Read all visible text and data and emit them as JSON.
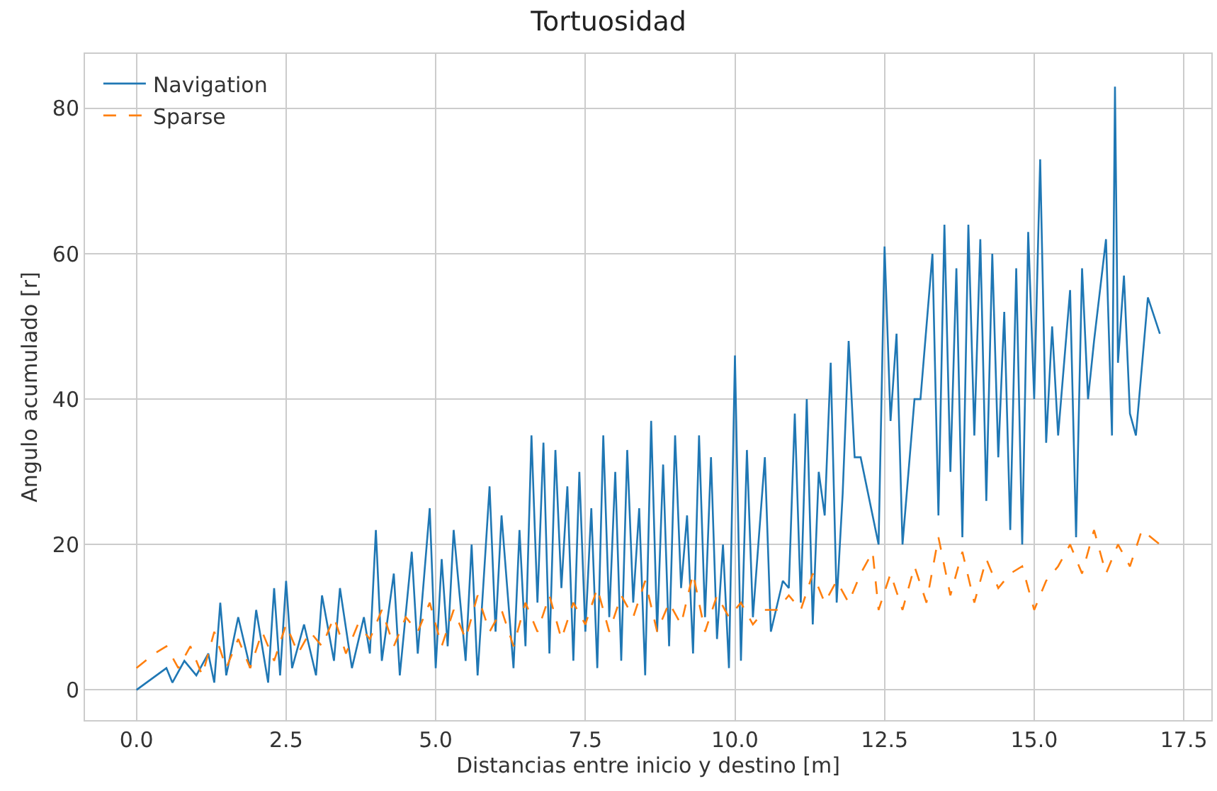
{
  "chart_data": {
    "type": "line",
    "title": "Tortuosidad",
    "xlabel": "Distancias entre inicio y destino [m]",
    "ylabel": "Angulo acumulado [r]",
    "xlim": [
      -0.86,
      17.96
    ],
    "xticks": [
      {
        "value": 0,
        "label": "0.0"
      },
      2.5,
      {
        "value": 5,
        "label": "5.0"
      },
      7.5,
      {
        "value": 10,
        "label": "10.0"
      },
      12.5,
      {
        "value": 15,
        "label": "15.0"
      },
      17.5
    ],
    "ylim": [
      -4.16,
      87.5
    ],
    "yticks": [
      0,
      20,
      40,
      60,
      80
    ],
    "grid": true,
    "legend": "top left",
    "series": [
      {
        "name": "Navigation",
        "color": "#1f77b4",
        "line_style": "solid",
        "x": [
          0.0,
          0.5,
          0.6,
          0.8,
          1.0,
          1.2,
          1.3,
          1.4,
          1.5,
          1.7,
          1.9,
          2.0,
          2.2,
          2.3,
          2.4,
          2.5,
          2.6,
          2.8,
          3.0,
          3.1,
          3.3,
          3.4,
          3.6,
          3.8,
          3.9,
          4.0,
          4.1,
          4.3,
          4.4,
          4.6,
          4.7,
          4.9,
          5.0,
          5.1,
          5.2,
          5.3,
          5.5,
          5.6,
          5.7,
          5.9,
          6.0,
          6.1,
          6.3,
          6.4,
          6.5,
          6.6,
          6.7,
          6.8,
          6.9,
          7.0,
          7.1,
          7.2,
          7.3,
          7.4,
          7.5,
          7.6,
          7.7,
          7.8,
          7.9,
          8.0,
          8.1,
          8.2,
          8.3,
          8.4,
          8.5,
          8.6,
          8.7,
          8.8,
          8.9,
          9.0,
          9.1,
          9.2,
          9.3,
          9.4,
          9.5,
          9.6,
          9.7,
          9.8,
          9.9,
          10.0,
          10.1,
          10.2,
          10.3,
          10.5,
          10.6,
          10.8,
          10.9,
          11.0,
          11.1,
          11.2,
          11.3,
          11.4,
          11.5,
          11.6,
          11.7,
          11.8,
          11.9,
          12.0,
          12.1,
          12.4,
          12.5,
          12.6,
          12.7,
          12.8,
          13.0,
          13.1,
          13.3,
          13.4,
          13.5,
          13.6,
          13.7,
          13.8,
          13.9,
          14.0,
          14.1,
          14.2,
          14.3,
          14.4,
          14.5,
          14.6,
          14.7,
          14.8,
          14.9,
          15.0,
          15.1,
          15.2,
          15.3,
          15.4,
          15.6,
          15.7,
          15.8,
          15.9,
          16.0,
          16.2,
          16.3,
          16.35,
          16.4,
          16.5,
          16.6,
          16.7,
          16.9,
          17.1
        ],
        "values": [
          0,
          3,
          1,
          4,
          2,
          5,
          1,
          12,
          2,
          10,
          3,
          11,
          1,
          14,
          2,
          15,
          3,
          9,
          2,
          13,
          4,
          14,
          3,
          10,
          5,
          22,
          4,
          16,
          2,
          19,
          5,
          25,
          3,
          18,
          6,
          22,
          4,
          20,
          2,
          28,
          8,
          24,
          3,
          22,
          6,
          35,
          12,
          34,
          5,
          33,
          14,
          28,
          4,
          30,
          8,
          25,
          3,
          35,
          10,
          30,
          4,
          33,
          12,
          25,
          2,
          37,
          8,
          31,
          6,
          35,
          14,
          24,
          5,
          35,
          10,
          32,
          7,
          20,
          3,
          46,
          4,
          33,
          10,
          32,
          8,
          15,
          14,
          38,
          12,
          40,
          9,
          30,
          24,
          45,
          12,
          27,
          48,
          32,
          32,
          20,
          61,
          37,
          49,
          20,
          40,
          40,
          60,
          24,
          64,
          30,
          58,
          21,
          64,
          35,
          62,
          26,
          60,
          32,
          52,
          22,
          58,
          20,
          63,
          40,
          73,
          34,
          50,
          35,
          55,
          21,
          58,
          40,
          48,
          62,
          35,
          83,
          45,
          57,
          38,
          35,
          54,
          49
        ]
      },
      {
        "name": "Sparse",
        "color": "#ff7f0e",
        "line_style": "dashed",
        "x": [
          0,
          0.3,
          0.5,
          0.7,
          0.9,
          1.1,
          1.3,
          1.5,
          1.7,
          1.9,
          2.1,
          2.3,
          2.5,
          2.7,
          2.9,
          3.1,
          3.3,
          3.5,
          3.7,
          3.9,
          4.1,
          4.3,
          4.5,
          4.7,
          4.9,
          5.1,
          5.3,
          5.5,
          5.7,
          5.9,
          6.1,
          6.3,
          6.5,
          6.7,
          6.9,
          7.1,
          7.3,
          7.5,
          7.7,
          7.9,
          8.1,
          8.3,
          8.5,
          8.7,
          8.9,
          9.1,
          9.3,
          9.5,
          9.7,
          9.9,
          10.1,
          10.3,
          10.5,
          10.7,
          10.9,
          11.1,
          11.3,
          11.5,
          11.7,
          11.9,
          12.1,
          12.3,
          12.4,
          12.6,
          12.8,
          13.0,
          13.2,
          13.4,
          13.6,
          13.8,
          14.0,
          14.2,
          14.4,
          14.6,
          14.8,
          15.0,
          15.2,
          15.4,
          15.6,
          15.8,
          16.0,
          16.2,
          16.4,
          16.6,
          16.8,
          17.1
        ],
        "values": [
          3,
          5,
          6,
          3,
          6,
          2,
          8,
          3,
          7,
          3,
          8,
          4,
          9,
          5,
          8,
          6,
          10,
          5,
          9,
          7,
          11,
          6,
          10,
          8,
          12,
          6,
          11,
          7,
          13,
          8,
          11,
          6,
          12,
          8,
          13,
          7,
          12,
          9,
          14,
          8,
          13,
          10,
          15,
          8,
          12,
          9,
          16,
          8,
          13,
          10,
          12,
          9,
          11,
          11,
          13,
          11,
          16,
          12,
          15,
          12,
          16,
          19,
          11,
          16,
          11,
          17,
          12,
          21,
          13,
          19,
          12,
          18,
          14,
          16,
          17,
          11,
          15,
          17,
          20,
          16,
          22,
          16,
          20,
          17,
          22,
          20
        ]
      }
    ]
  }
}
